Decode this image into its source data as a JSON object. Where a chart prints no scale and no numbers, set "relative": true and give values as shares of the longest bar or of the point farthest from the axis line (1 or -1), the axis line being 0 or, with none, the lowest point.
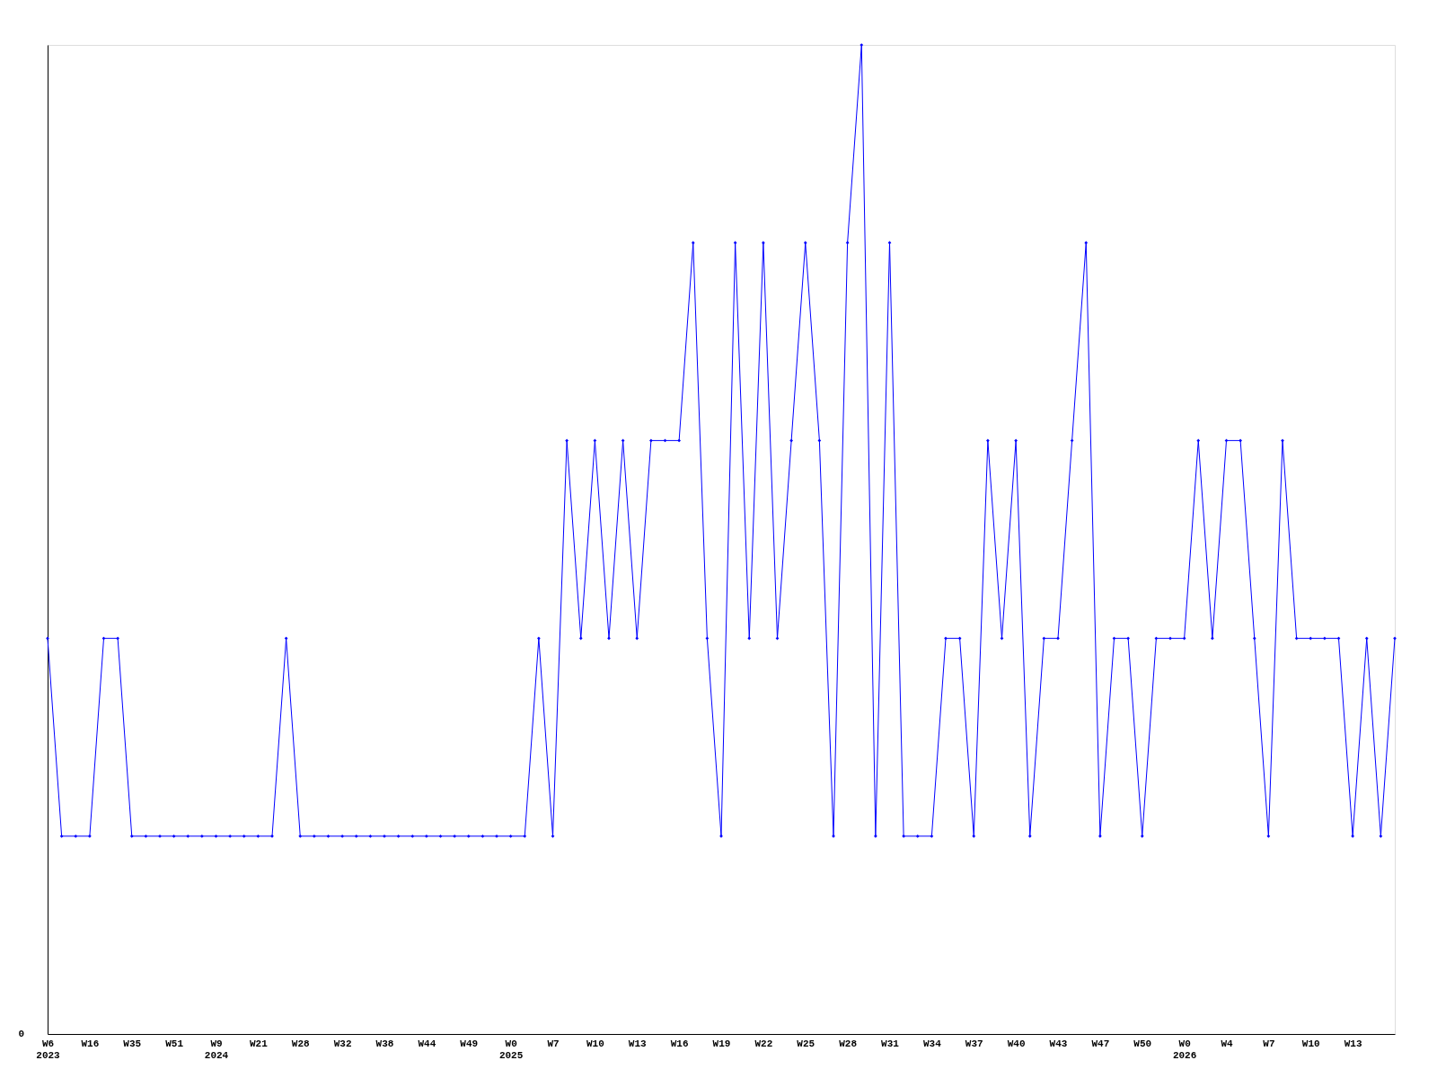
{
  "chart_data": {
    "type": "line",
    "relative": true,
    "marker": "diamond",
    "line_style": "solid",
    "grid": false,
    "categories": [
      "W6\n2023",
      null,
      null,
      "W16",
      null,
      null,
      "W35",
      null,
      null,
      "W51",
      null,
      null,
      "W9\n2024",
      null,
      null,
      "W21",
      null,
      null,
      "W28",
      null,
      null,
      "W32",
      null,
      null,
      "W38",
      null,
      null,
      "W44",
      null,
      null,
      "W49",
      null,
      null,
      "W0\n2025",
      null,
      null,
      "W7",
      null,
      null,
      "W10",
      null,
      null,
      "W13",
      null,
      null,
      "W16",
      null,
      null,
      "W19",
      null,
      null,
      "W22",
      null,
      null,
      "W25",
      null,
      null,
      "W28",
      null,
      null,
      "W31",
      null,
      null,
      "W34",
      null,
      null,
      "W37",
      null,
      null,
      "W40",
      null,
      null,
      "W43",
      null,
      null,
      "W47",
      null,
      null,
      "W50",
      null,
      null,
      "W0\n2026",
      null,
      null,
      "W4",
      null,
      null,
      "W7",
      null,
      null,
      "W10",
      null,
      null,
      "W13",
      null,
      null,
      null
    ],
    "series": [
      {
        "color": "#0000ff",
        "values": [
          0.4,
          0.2,
          0.2,
          0.2,
          0.4,
          0.4,
          0.2,
          0.2,
          0.2,
          0.2,
          0.2,
          0.2,
          0.2,
          0.2,
          0.2,
          0.2,
          0.2,
          0.4,
          0.2,
          0.2,
          0.2,
          0.2,
          0.2,
          0.2,
          0.2,
          0.2,
          0.2,
          0.2,
          0.2,
          0.2,
          0.2,
          0.2,
          0.2,
          0.2,
          0.2,
          0.4,
          0.2,
          0.6,
          0.4,
          0.6,
          0.4,
          0.6,
          0.4,
          0.6,
          0.6,
          0.6,
          0.8,
          0.4,
          0.2,
          0.8,
          0.4,
          0.8,
          0.4,
          0.6,
          0.8,
          0.6,
          0.2,
          0.8,
          1,
          0.2,
          0.8,
          0.2,
          0.2,
          0.2,
          0.4,
          0.4,
          0.2,
          0.6,
          0.4,
          0.6,
          0.2,
          0.4,
          0.4,
          0.6,
          0.8,
          0.2,
          0.4,
          0.4,
          0.2,
          0.4,
          0.4,
          0.4,
          0.6,
          0.4,
          0.6,
          0.6,
          0.4,
          0.2,
          0.6,
          0.4,
          0.4,
          0.4,
          0.4,
          0.2,
          0.4,
          0.2,
          0.4
        ]
      }
    ],
    "annotations": [
      "0"
    ]
  }
}
